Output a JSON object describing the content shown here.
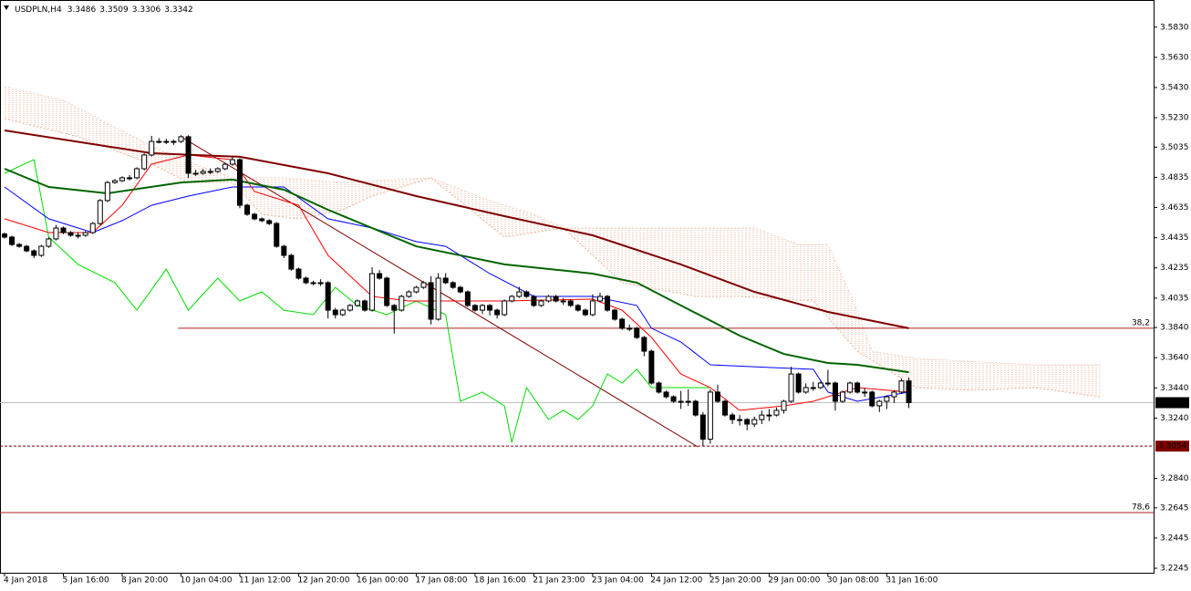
{
  "chart_data": {
    "type": "candlestick",
    "symbol": "USDPLN,H4",
    "ohlc": [
      3.3486,
      3.3509,
      3.3306,
      3.3342
    ],
    "xlim": [
      -0.62,
      156.3
    ],
    "ylim": [
      3.2215,
      3.601
    ],
    "xticks": [
      {
        "value": 0,
        "label": "4 Jan 2018"
      },
      {
        "value": 8,
        "label": "5 Jan 16:00"
      },
      {
        "value": 16,
        "label": "8 Jan 20:00"
      },
      {
        "value": 24,
        "label": "10 Jan 04:00"
      },
      {
        "value": 32,
        "label": "11 Jan 12:00"
      },
      {
        "value": 40,
        "label": "12 Jan 20:00"
      },
      {
        "value": 48,
        "label": "16 Jan 00:00"
      },
      {
        "value": 56,
        "label": "17 Jan 08:00"
      },
      {
        "value": 64,
        "label": "18 Jan 16:00"
      },
      {
        "value": 72,
        "label": "21 Jan 23:00"
      },
      {
        "value": 80,
        "label": "23 Jan 04:00"
      },
      {
        "value": 88,
        "label": "24 Jan 12:00"
      },
      {
        "value": 96,
        "label": "25 Jan 20:00"
      },
      {
        "value": 104,
        "label": "29 Jan 00:00"
      },
      {
        "value": 112,
        "label": "30 Jan 08:00"
      },
      {
        "value": 120,
        "label": "31 Jan 16:00"
      }
    ],
    "yticks": [
      {
        "value": 3.583,
        "label": "3.5830"
      },
      {
        "value": 3.563,
        "label": "3.5630"
      },
      {
        "value": 3.543,
        "label": "3.5430"
      },
      {
        "value": 3.523,
        "label": "3.5230"
      },
      {
        "value": 3.5035,
        "label": "3.5035"
      },
      {
        "value": 3.4835,
        "label": "3.4835"
      },
      {
        "value": 3.4635,
        "label": "3.4635"
      },
      {
        "value": 3.4435,
        "label": "3.4435"
      },
      {
        "value": 3.4235,
        "label": "3.4235"
      },
      {
        "value": 3.4035,
        "label": "3.4035"
      },
      {
        "value": 3.384,
        "label": "3.3840"
      },
      {
        "value": 3.364,
        "label": "3.3640"
      },
      {
        "value": 3.344,
        "label": "3.3440"
      },
      {
        "value": 3.324,
        "label": "3.3240"
      },
      {
        "value": 3.284,
        "label": "3.2840"
      },
      {
        "value": 3.2645,
        "label": "3.2645"
      },
      {
        "value": 3.2445,
        "label": "3.2445"
      },
      {
        "value": 3.2245,
        "label": "3.2245"
      }
    ],
    "candles": [
      [
        3.446,
        3.447,
        3.4429,
        3.4439
      ],
      [
        3.4439,
        3.4449,
        3.438,
        3.439
      ],
      [
        3.439,
        3.44,
        3.4368,
        3.4378
      ],
      [
        3.4378,
        3.4388,
        3.4338,
        3.4348
      ],
      [
        3.4348,
        3.4358,
        3.43,
        3.4318
      ],
      [
        3.4318,
        3.4388,
        3.4308,
        3.4378
      ],
      [
        3.4378,
        3.4437,
        3.4368,
        3.4427
      ],
      [
        3.4427,
        3.452,
        3.4417,
        3.4499
      ],
      [
        3.4499,
        3.4509,
        3.4459,
        3.4469
      ],
      [
        3.4469,
        3.4479,
        3.4441,
        3.4451
      ],
      [
        3.4451,
        3.447,
        3.443,
        3.4451
      ],
      [
        3.4451,
        3.4479,
        3.4441,
        3.4469
      ],
      [
        3.4469,
        3.4539,
        3.4459,
        3.4529
      ],
      [
        3.4529,
        3.4691,
        3.4519,
        3.4681
      ],
      [
        3.4681,
        3.4811,
        3.4671,
        3.4801
      ],
      [
        3.4801,
        3.4823,
        3.4791,
        3.4813
      ],
      [
        3.4813,
        3.4842,
        3.4803,
        3.4832
      ],
      [
        3.4832,
        3.485,
        3.4815,
        3.4832
      ],
      [
        3.4832,
        3.4902,
        3.4822,
        3.4892
      ],
      [
        3.4892,
        3.4993,
        3.4882,
        3.4983
      ],
      [
        3.4983,
        3.511,
        3.4973,
        3.5073
      ],
      [
        3.5073,
        3.5095,
        3.506,
        3.5073
      ],
      [
        3.5073,
        3.509,
        3.5055,
        3.5073
      ],
      [
        3.5073,
        3.5085,
        3.505,
        3.5073
      ],
      [
        3.5073,
        3.5114,
        3.5063,
        3.5104
      ],
      [
        3.5104,
        3.5114,
        3.483,
        3.4862
      ],
      [
        3.4862,
        3.4885,
        3.4845,
        3.4862
      ],
      [
        3.4862,
        3.489,
        3.4852,
        3.4874
      ],
      [
        3.4874,
        3.4895,
        3.4855,
        3.4874
      ],
      [
        3.4874,
        3.4902,
        3.4864,
        3.4892
      ],
      [
        3.4892,
        3.4932,
        3.4882,
        3.4922
      ],
      [
        3.4922,
        3.497,
        3.4912,
        3.4952
      ],
      [
        3.4952,
        3.4962,
        3.463,
        3.465
      ],
      [
        3.465,
        3.466,
        3.458,
        3.459
      ],
      [
        3.459,
        3.46,
        3.455,
        3.456
      ],
      [
        3.456,
        3.457,
        3.4538,
        3.4548
      ],
      [
        3.4548,
        3.4558,
        3.4519,
        3.4529
      ],
      [
        3.4529,
        3.4539,
        3.4368,
        3.4378
      ],
      [
        3.4378,
        3.4388,
        3.43,
        3.4318
      ],
      [
        3.4318,
        3.4328,
        3.4217,
        3.4227
      ],
      [
        3.4227,
        3.4237,
        3.4157,
        3.4167
      ],
      [
        3.4167,
        3.4177,
        3.4127,
        3.4137
      ],
      [
        3.4137,
        3.415,
        3.412,
        3.4137
      ],
      [
        3.4137,
        3.416,
        3.4115,
        3.4137
      ],
      [
        3.4137,
        3.4147,
        3.39,
        3.3955
      ],
      [
        3.3955,
        3.397,
        3.39,
        3.3925
      ],
      [
        3.3925,
        3.3965,
        3.3915,
        3.3955
      ],
      [
        3.3955,
        3.3996,
        3.3945,
        3.3986
      ],
      [
        3.3986,
        3.4026,
        3.3976,
        3.4016
      ],
      [
        3.4016,
        3.4026,
        3.3945,
        3.3955
      ],
      [
        3.3955,
        3.424,
        3.3945,
        3.4197
      ],
      [
        3.4197,
        3.422,
        3.4157,
        3.4167
      ],
      [
        3.4167,
        3.4177,
        3.3976,
        3.3986
      ],
      [
        3.3986,
        3.3996,
        3.38,
        3.3955
      ],
      [
        3.3955,
        3.4056,
        3.3945,
        3.4046
      ],
      [
        3.4046,
        3.4086,
        3.4036,
        3.4076
      ],
      [
        3.4076,
        3.4116,
        3.4066,
        3.4106
      ],
      [
        3.4106,
        3.4147,
        3.4096,
        3.4137
      ],
      [
        3.4137,
        3.418,
        3.386,
        3.3895
      ],
      [
        3.3895,
        3.42,
        3.3885,
        3.4167
      ],
      [
        3.4167,
        3.42,
        3.4127,
        3.4137
      ],
      [
        3.4137,
        3.4147,
        3.4096,
        3.4106
      ],
      [
        3.4106,
        3.4116,
        3.4066,
        3.4076
      ],
      [
        3.4076,
        3.4086,
        3.3976,
        3.3986
      ],
      [
        3.3986,
        3.3996,
        3.3945,
        3.3955
      ],
      [
        3.3955,
        3.3996,
        3.393,
        3.3986
      ],
      [
        3.3986,
        3.3996,
        3.392,
        3.3955
      ],
      [
        3.3955,
        3.3965,
        3.39,
        3.3925
      ],
      [
        3.3925,
        3.4026,
        3.3915,
        3.4016
      ],
      [
        3.4016,
        3.4056,
        3.4006,
        3.4046
      ],
      [
        3.4046,
        3.411,
        3.4036,
        3.4076
      ],
      [
        3.4076,
        3.4086,
        3.4036,
        3.4046
      ],
      [
        3.4046,
        3.4056,
        3.3976,
        3.3986
      ],
      [
        3.3986,
        3.4026,
        3.3976,
        3.4016
      ],
      [
        3.4016,
        3.4056,
        3.4006,
        3.4046
      ],
      [
        3.4046,
        3.4056,
        3.4006,
        3.4016
      ],
      [
        3.4016,
        3.4035,
        3.399,
        3.4016
      ],
      [
        3.4016,
        3.4026,
        3.3976,
        3.3986
      ],
      [
        3.3986,
        3.3996,
        3.3945,
        3.3955
      ],
      [
        3.3955,
        3.3965,
        3.3915,
        3.3925
      ],
      [
        3.3925,
        3.406,
        3.3915,
        3.4016
      ],
      [
        3.4016,
        3.407,
        3.4006,
        3.4046
      ],
      [
        3.4046,
        3.4056,
        3.3945,
        3.3955
      ],
      [
        3.3955,
        3.3965,
        3.3885,
        3.3895
      ],
      [
        3.3895,
        3.3905,
        3.3825,
        3.3835
      ],
      [
        3.3835,
        3.386,
        3.3815,
        3.3835
      ],
      [
        3.3835,
        3.3845,
        3.3764,
        3.3774
      ],
      [
        3.3774,
        3.3784,
        3.365,
        3.3683
      ],
      [
        3.3683,
        3.3693,
        3.3462,
        3.3472
      ],
      [
        3.3472,
        3.3482,
        3.3402,
        3.3412
      ],
      [
        3.3412,
        3.3422,
        3.3371,
        3.3381
      ],
      [
        3.3381,
        3.3391,
        3.3341,
        3.3351
      ],
      [
        3.3351,
        3.342,
        3.33,
        3.3351
      ],
      [
        3.3351,
        3.343,
        3.332,
        3.3351
      ],
      [
        3.3351,
        3.3361,
        3.325,
        3.326
      ],
      [
        3.326,
        3.328,
        3.3054,
        3.31
      ],
      [
        3.31,
        3.343,
        3.307,
        3.3412
      ],
      [
        3.3412,
        3.346,
        3.3341,
        3.3351
      ],
      [
        3.3351,
        3.3361,
        3.325,
        3.326
      ],
      [
        3.326,
        3.3275,
        3.32,
        3.323
      ],
      [
        3.323,
        3.326,
        3.319,
        3.323
      ],
      [
        3.323,
        3.324,
        3.316,
        3.32
      ],
      [
        3.32,
        3.325,
        3.318,
        3.323
      ],
      [
        3.323,
        3.329,
        3.32,
        3.326
      ],
      [
        3.326,
        3.33,
        3.322,
        3.326
      ],
      [
        3.326,
        3.331,
        3.325,
        3.3291
      ],
      [
        3.3291,
        3.3361,
        3.327,
        3.3351
      ],
      [
        3.3351,
        3.358,
        3.3341,
        3.3532
      ],
      [
        3.3532,
        3.3542,
        3.3402,
        3.3412
      ],
      [
        3.3412,
        3.347,
        3.3402,
        3.3442
      ],
      [
        3.3442,
        3.348,
        3.342,
        3.3442
      ],
      [
        3.3442,
        3.3482,
        3.3432,
        3.3472
      ],
      [
        3.3472,
        3.356,
        3.345,
        3.3472
      ],
      [
        3.3472,
        3.3482,
        3.329,
        3.3351
      ],
      [
        3.3351,
        3.3422,
        3.3341,
        3.3412
      ],
      [
        3.3412,
        3.3482,
        3.3402,
        3.3472
      ],
      [
        3.3472,
        3.3482,
        3.3402,
        3.3412
      ],
      [
        3.3412,
        3.344,
        3.338,
        3.3412
      ],
      [
        3.3412,
        3.3422,
        3.3311,
        3.3321
      ],
      [
        3.3321,
        3.3361,
        3.328,
        3.3351
      ],
      [
        3.3351,
        3.3391,
        3.33,
        3.3381
      ],
      [
        3.3381,
        3.3422,
        3.334,
        3.3412
      ],
      [
        3.3412,
        3.35,
        3.34,
        3.3486
      ],
      [
        3.3486,
        3.3509,
        3.3306,
        3.3342
      ]
    ],
    "cloud": {
      "color": "#e8b49a",
      "span_a": {
        "x": [
          0,
          10,
          20,
          25,
          31,
          35,
          40,
          46,
          50,
          56,
          58,
          68,
          76,
          84,
          94,
          100,
          110,
          116,
          118,
          124,
          132,
          140,
          149
        ],
        "values": [
          3.5224,
          3.5104,
          3.4922,
          3.4801,
          3.4801,
          3.459,
          3.456,
          3.462,
          3.4711,
          3.4801,
          3.4832,
          3.4439,
          3.4499,
          3.4137,
          3.4046,
          3.4046,
          3.4016,
          3.3683,
          3.3623,
          3.3442,
          3.3424,
          3.3442,
          3.3381
        ]
      },
      "span_b": {
        "x": [
          0,
          8,
          14,
          20,
          26,
          31,
          38,
          46,
          58,
          66,
          72,
          76,
          102,
          108,
          112,
          116,
          118,
          124,
          140,
          149
        ],
        "values": [
          3.5436,
          3.5345,
          3.5194,
          3.5043,
          3.4922,
          3.4832,
          3.4832,
          3.4801,
          3.4832,
          3.4681,
          3.459,
          3.4499,
          3.4499,
          3.439,
          3.439,
          3.3955,
          3.3683,
          3.3635,
          3.3593,
          3.3593
        ]
      }
    },
    "series": [
      {
        "color": "#00dd00",
        "width": 1,
        "x": [
          0,
          4,
          6,
          10,
          15,
          18,
          22,
          25,
          29,
          32,
          35,
          38,
          42,
          45,
          48,
          52,
          56,
          60,
          62,
          65,
          68,
          69,
          71,
          74,
          76,
          78,
          80,
          82,
          84,
          86,
          88,
          92,
          96
        ],
        "values": [
          3.4862,
          3.4952,
          3.4439,
          3.4258,
          3.4137,
          3.3955,
          3.4227,
          3.3955,
          3.4167,
          3.4016,
          3.4076,
          3.3955,
          3.3925,
          3.4106,
          3.3986,
          3.3925,
          3.4016,
          3.3925,
          3.3351,
          3.3412,
          3.3321,
          3.3079,
          3.3442,
          3.323,
          3.3291,
          3.323,
          3.3321,
          3.3532,
          3.3472,
          3.3563,
          3.3442,
          3.3442,
          3.3442
        ]
      },
      {
        "color": "#0000ff",
        "width": 1,
        "x": [
          0,
          6,
          12,
          16,
          20,
          25,
          31,
          38,
          44,
          50,
          56,
          60,
          66,
          72,
          80,
          86,
          88,
          92,
          96,
          104,
          110,
          112,
          116,
          123
        ],
        "values": [
          3.4771,
          3.456,
          3.4469,
          3.4548,
          3.465,
          3.4711,
          3.4771,
          3.4771,
          3.456,
          3.4499,
          3.4409,
          3.4378,
          3.4197,
          3.4046,
          3.4046,
          3.3986,
          3.3835,
          3.3744,
          3.3593,
          3.3575,
          3.3563,
          3.3412,
          3.3351,
          3.3412
        ]
      },
      {
        "color": "#ff0000",
        "width": 1,
        "x": [
          0,
          6,
          12,
          16,
          20,
          25,
          31,
          34,
          40,
          44,
          50,
          55,
          60,
          68,
          80,
          84,
          88,
          92,
          96,
          100,
          106,
          110,
          116,
          123
        ],
        "values": [
          3.456,
          3.4469,
          3.4469,
          3.465,
          3.4922,
          3.4983,
          3.4952,
          3.4741,
          3.465,
          3.4318,
          3.4046,
          3.4016,
          3.4016,
          3.4016,
          3.4028,
          3.3955,
          3.3774,
          3.3532,
          3.3442,
          3.3291,
          3.3321,
          3.3351,
          3.3442,
          3.3412
        ]
      },
      {
        "color": "#006400",
        "width": 2,
        "x": [
          0,
          6,
          14,
          24,
          31,
          38,
          44,
          56,
          68,
          80,
          86,
          92,
          100,
          106,
          112,
          116,
          123
        ],
        "values": [
          3.4892,
          3.4771,
          3.4729,
          3.4801,
          3.482,
          3.4753,
          3.462,
          3.4378,
          3.4258,
          3.4197,
          3.4137,
          3.3986,
          3.3786,
          3.3665,
          3.3605,
          3.3593,
          3.3544
        ]
      },
      {
        "color": "#800000",
        "width": 2,
        "x": [
          0,
          12,
          20,
          32,
          44,
          56,
          68,
          80,
          92,
          102,
          112,
          123
        ],
        "values": [
          3.5146,
          3.5055,
          3.4995,
          3.4971,
          3.4862,
          3.4711,
          3.4578,
          3.4451,
          3.4258,
          3.4076,
          3.3943,
          3.3835
        ]
      }
    ],
    "trendline": {
      "color": "#800000",
      "x": [
        24,
        94.3
      ],
      "values": [
        3.5104,
        3.3049
      ]
    },
    "levels": [
      {
        "label": "38,2",
        "value": 3.3835,
        "start": 23.6,
        "color": "#b22222"
      },
      {
        "label": "78,6",
        "value": 3.2614,
        "start": -0.62,
        "color": "#b22222"
      }
    ],
    "low_line": {
      "value": 3.3054,
      "color": "#800000"
    },
    "price_line": {
      "value": 3.3342,
      "color": "#000000"
    }
  }
}
